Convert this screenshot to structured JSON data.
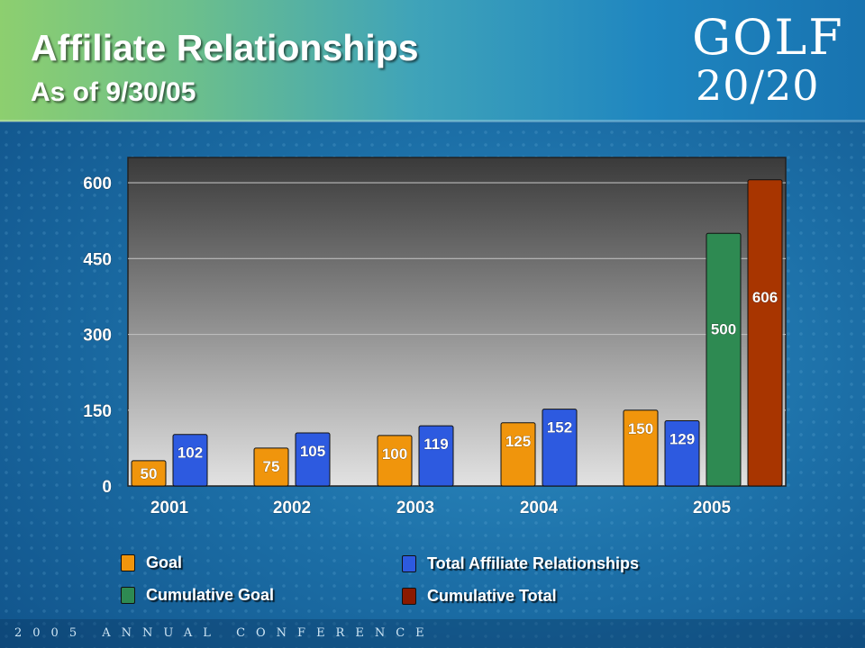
{
  "header": {
    "title": "Affiliate Relationships",
    "subtitle": "As of 9/30/05"
  },
  "logo": {
    "line1": "GOLF",
    "line2": "20/20",
    "colors": [
      "#f5a623",
      "#3aa34a",
      "#e23a2a",
      "#2f6fd6"
    ]
  },
  "footer": {
    "text": "2005 ANNUAL CONFERENCE"
  },
  "chart_data": {
    "type": "bar",
    "title": "",
    "xlabel": "",
    "ylabel": "",
    "ylim": [
      0,
      650
    ],
    "yticks": [
      0,
      150,
      300,
      450,
      600
    ],
    "grid": true,
    "legend_position": "bottom",
    "categories": [
      "2001",
      "2002",
      "2003",
      "2004",
      "2005"
    ],
    "series": [
      {
        "name": "Goal",
        "color": "#f0950c",
        "values": [
          50,
          75,
          100,
          125,
          150
        ]
      },
      {
        "name": "Total Affiliate Relationships",
        "color": "#2d5ae0",
        "values": [
          102,
          105,
          119,
          152,
          129
        ]
      },
      {
        "name": "Cumulative Goal",
        "color": "#2e8a52",
        "values": [
          null,
          null,
          null,
          null,
          500
        ]
      },
      {
        "name": "Cumulative Total",
        "color": "#a83500",
        "values": [
          null,
          null,
          null,
          null,
          606
        ]
      }
    ]
  }
}
